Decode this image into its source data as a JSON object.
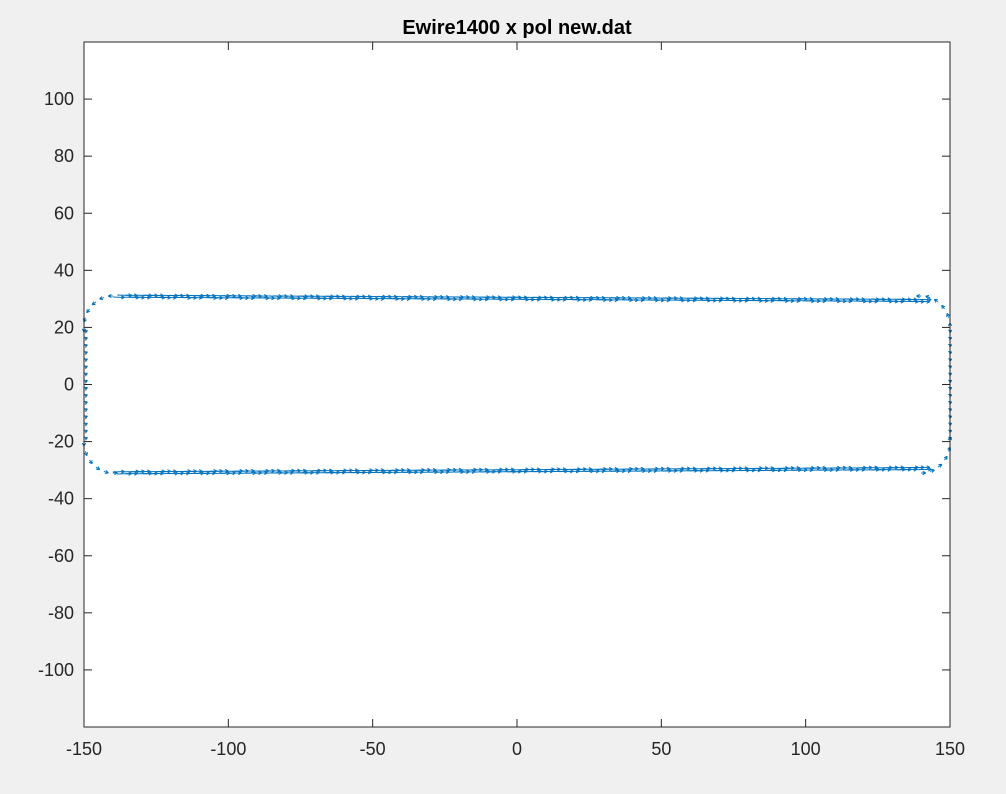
{
  "chart_data": {
    "type": "quiver",
    "title": "Ewire1400 x pol new.dat",
    "xlabel": "",
    "ylabel": "",
    "xlim": [
      -150,
      150
    ],
    "ylim": [
      -120,
      120
    ],
    "xticks": [
      -150,
      -100,
      -50,
      0,
      50,
      100,
      150
    ],
    "xtick_labels": [
      "-150",
      "-100",
      "-50",
      "0",
      "50",
      "100",
      "150"
    ],
    "yticks": [
      100,
      80,
      60,
      40,
      20,
      0,
      -20,
      -40,
      -60,
      -80,
      -100
    ],
    "ytick_labels": [
      "100",
      "80",
      "60",
      "40",
      "20",
      "0",
      "-20",
      "-40",
      "-60",
      "-80",
      "-100"
    ],
    "grid": false,
    "legend": false,
    "series_color": "#0072bd",
    "wire_path": {
      "shape": "rounded rectangle (racetrack)",
      "x_range": [
        -150,
        150
      ],
      "y_range": [
        -31,
        31
      ],
      "straight_x_range": [
        -140,
        140
      ],
      "top_y_at_x_min": 31,
      "top_y_at_x_max": 29.5,
      "bottom_y_at_x_min": -31,
      "bottom_y_at_x_max": -29.5,
      "corner_radius": 10,
      "vector_direction": "tangential (x-polarized current along wire)"
    }
  },
  "colors": {
    "figure_background": "#f0f0f0",
    "axes_background": "#ffffff",
    "axes_line": "#262626",
    "arrows": "#0072bd"
  }
}
